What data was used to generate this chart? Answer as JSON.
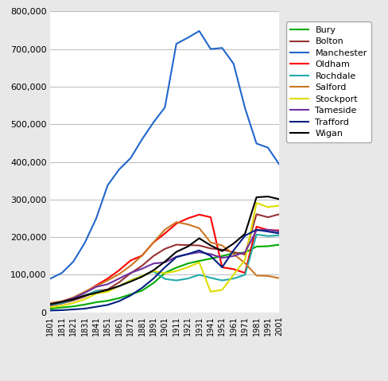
{
  "years": [
    1801,
    1811,
    1821,
    1831,
    1841,
    1851,
    1861,
    1871,
    1881,
    1891,
    1901,
    1911,
    1921,
    1931,
    1941,
    1951,
    1961,
    1971,
    1981,
    1991,
    2001
  ],
  "series": {
    "Bury": [
      10000,
      13000,
      16000,
      21000,
      27000,
      31000,
      38000,
      48000,
      58000,
      78000,
      105000,
      119000,
      130000,
      137000,
      143000,
      150000,
      157000,
      159000,
      175000,
      176000,
      180000
    ],
    "Bolton": [
      18000,
      24000,
      32000,
      42000,
      57000,
      61000,
      80000,
      104000,
      124000,
      150000,
      169000,
      180000,
      179000,
      178000,
      170000,
      167000,
      160000,
      154000,
      261000,
      253000,
      261000
    ],
    "Manchester": [
      90000,
      105000,
      135000,
      185000,
      250000,
      338000,
      380000,
      410000,
      460000,
      505000,
      545000,
      714000,
      730000,
      748000,
      700000,
      703000,
      661000,
      543000,
      449000,
      438000,
      393000
    ],
    "Oldham": [
      22000,
      29000,
      38000,
      53000,
      72000,
      90000,
      112000,
      138000,
      151000,
      186000,
      210000,
      236000,
      250000,
      260000,
      253000,
      120000,
      115000,
      105000,
      228000,
      219000,
      218000
    ],
    "Rochdale": [
      20000,
      25000,
      35000,
      45000,
      57000,
      58000,
      70000,
      85000,
      97000,
      109000,
      89000,
      85000,
      90000,
      100000,
      92000,
      85000,
      90000,
      100000,
      207000,
      203000,
      205000
    ],
    "Salford": [
      25000,
      30000,
      40000,
      55000,
      70000,
      85000,
      102000,
      124000,
      151000,
      186000,
      220000,
      240000,
      234000,
      224000,
      186000,
      178000,
      155000,
      131000,
      98000,
      97000,
      91000
    ],
    "Stockport": [
      14000,
      18000,
      25000,
      35000,
      50000,
      55000,
      70000,
      85000,
      97000,
      110000,
      104000,
      110000,
      120000,
      133000,
      55000,
      60000,
      100000,
      140000,
      291000,
      280000,
      284000
    ],
    "Tameside": [
      22000,
      28000,
      38000,
      52000,
      68000,
      75000,
      90000,
      105000,
      116000,
      130000,
      133000,
      148000,
      155000,
      160000,
      155000,
      145000,
      150000,
      160000,
      218000,
      220000,
      215000
    ],
    "Trafford": [
      5000,
      6000,
      8000,
      10000,
      15000,
      20000,
      30000,
      45000,
      65000,
      90000,
      120000,
      147000,
      155000,
      165000,
      150000,
      120000,
      165000,
      204000,
      220000,
      215000,
      210000
    ],
    "Wigan": [
      22000,
      28000,
      35000,
      45000,
      52000,
      60000,
      70000,
      82000,
      95000,
      112000,
      135000,
      161000,
      175000,
      197000,
      178000,
      163000,
      183000,
      209000,
      306000,
      308000,
      301000
    ]
  },
  "colors": {
    "Bury": "#00AA00",
    "Bolton": "#993333",
    "Manchester": "#2266CC",
    "Oldham": "#FF0000",
    "Rochdale": "#22AAAA",
    "Salford": "#CC7722",
    "Stockport": "#DDDD00",
    "Tameside": "#7030A0",
    "Trafford": "#002080",
    "Wigan": "#000000"
  },
  "ylim": [
    0,
    800000
  ],
  "yticks": [
    0,
    100000,
    200000,
    300000,
    400000,
    500000,
    600000,
    700000,
    800000
  ],
  "plot_bg": "#FFFFFF",
  "fig_bg": "#E8E8E8",
  "grid_color": "#C0C0C0"
}
